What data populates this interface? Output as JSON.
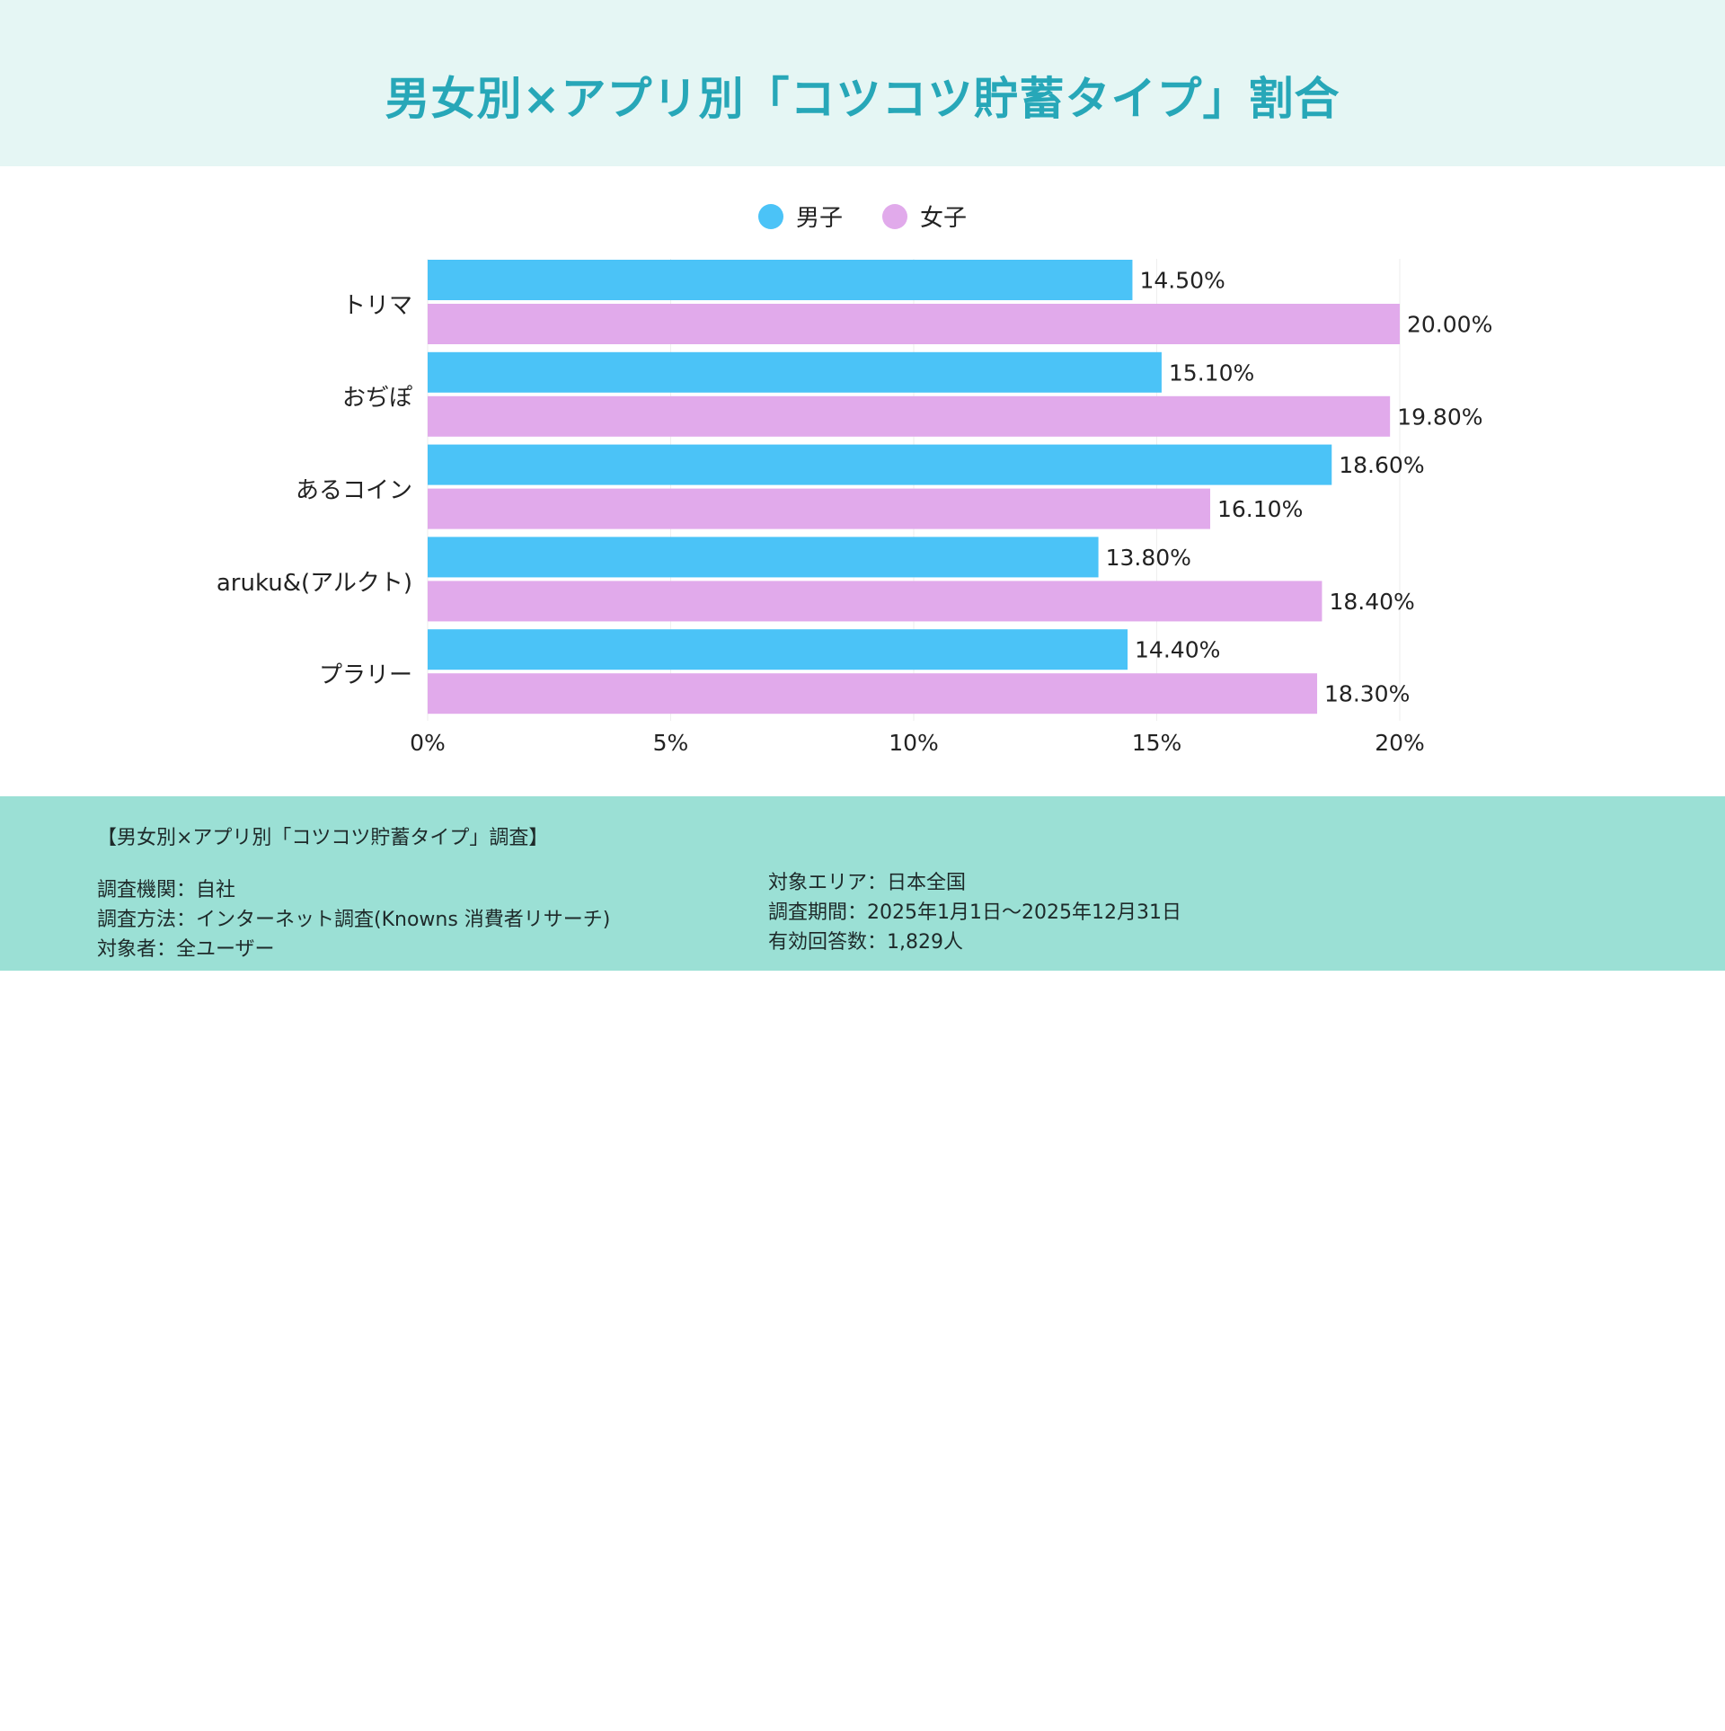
{
  "title": "男女別×アプリ別「コツコツ貯蓄タイプ」割合",
  "chart_data": {
    "type": "bar",
    "orientation": "horizontal",
    "title": "男女別×アプリ別「コツコツ貯蓄タイプ」割合",
    "categories": [
      "トリマ",
      "おぢぽ",
      "あるコイン",
      "aruku&(アルクト)",
      "プラリー"
    ],
    "series": [
      {
        "name": "男子",
        "color": "#4bc3f7",
        "values": [
          14.5,
          15.1,
          18.6,
          13.8,
          14.4
        ],
        "labels": [
          "14.50%",
          "15.10%",
          "18.60%",
          "13.80%",
          "14.40%"
        ]
      },
      {
        "name": "女子",
        "color": "#e1aaeb",
        "values": [
          20.0,
          19.8,
          16.1,
          18.4,
          18.3
        ],
        "labels": [
          "20.00%",
          "19.80%",
          "16.10%",
          "18.40%",
          "18.30%"
        ]
      }
    ],
    "xlim": [
      0,
      20
    ],
    "xticks": [
      0,
      5,
      10,
      15,
      20
    ],
    "xtick_labels": [
      "0%",
      "5%",
      "10%",
      "15%",
      "20%"
    ],
    "xlabel": "",
    "ylabel": "",
    "grid": true,
    "legend_position": "top-center"
  },
  "footer": {
    "heading": "【男女別×アプリ別「コツコツ貯蓄タイプ」調査】",
    "left": [
      "調査機関：自社",
      "調査方法：インターネット調査(Knowns 消費者リサーチ)",
      "対象者：全ユーザー"
    ],
    "right": [
      "対象エリア：日本全国",
      "調査期間：2025年1月1日〜2025年12月31日",
      "有効回答数：1,829人"
    ]
  }
}
